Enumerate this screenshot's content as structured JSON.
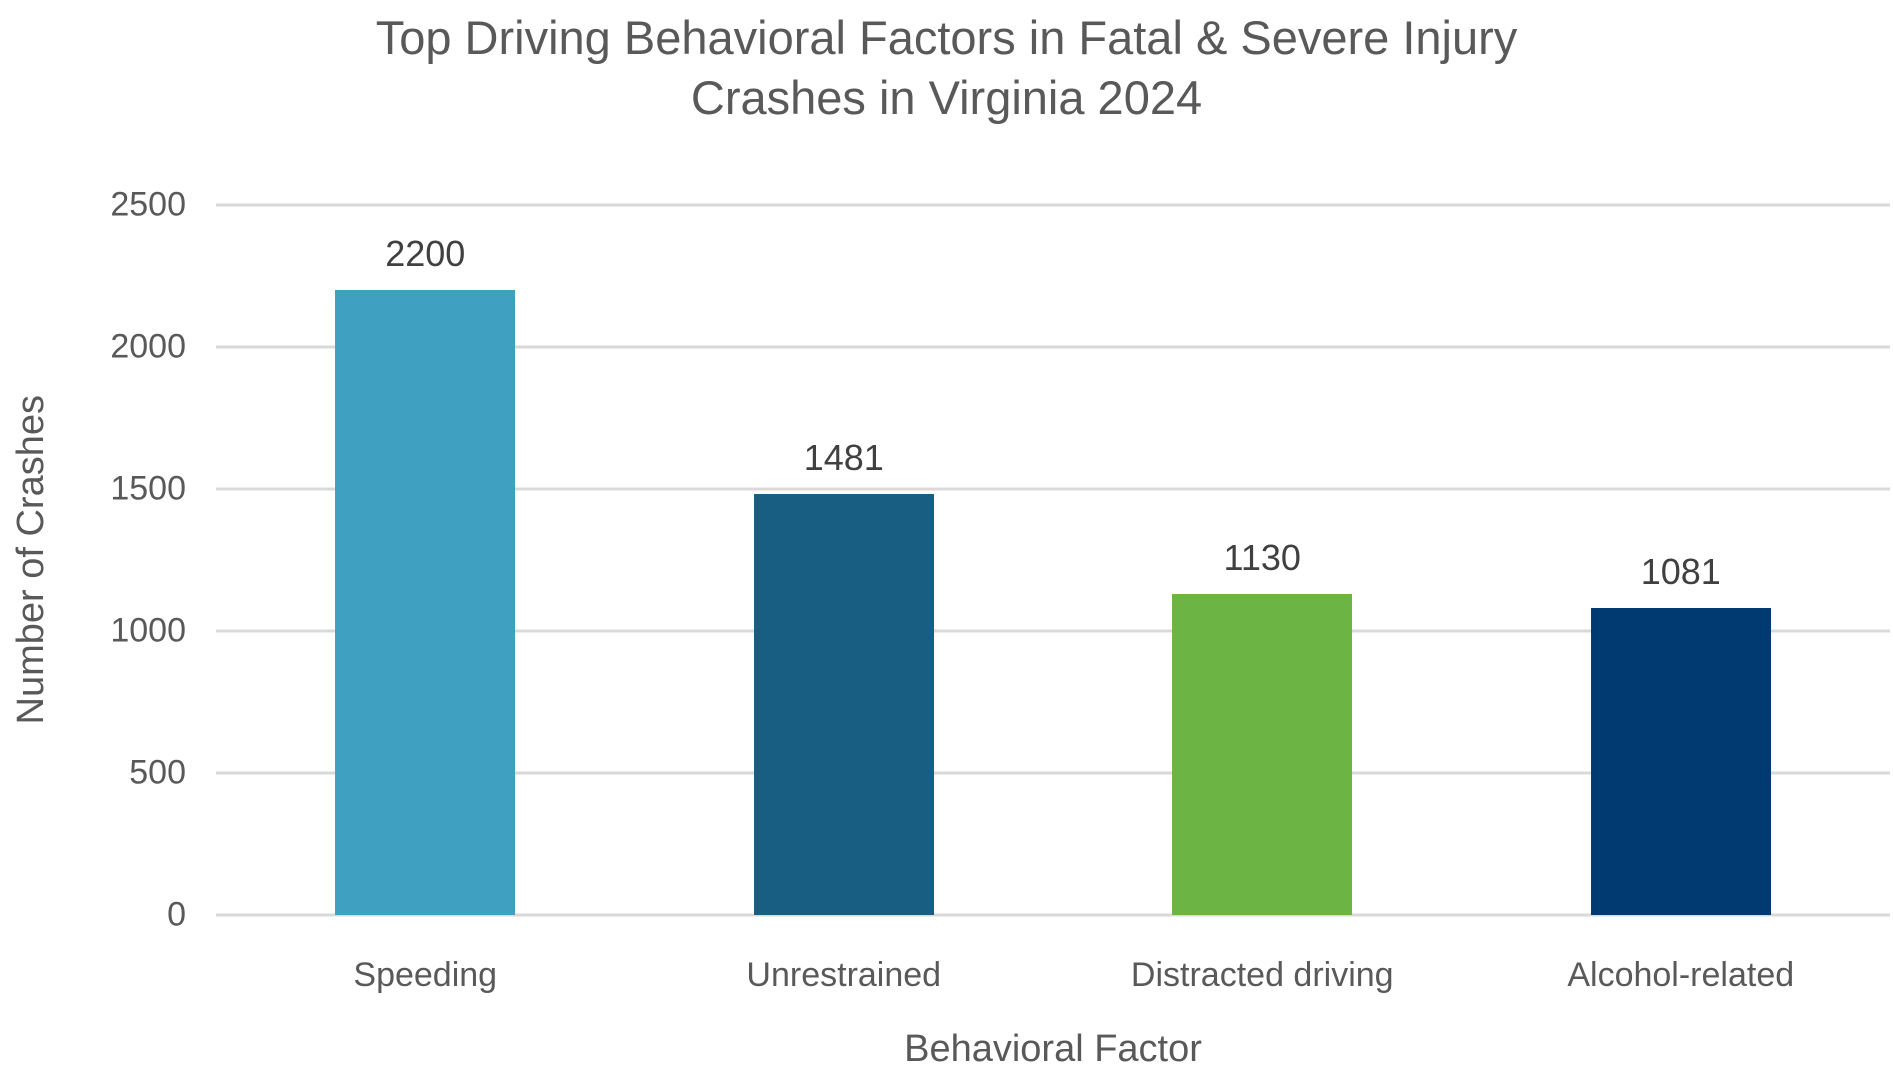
{
  "page": {
    "background": "#FFFFFF",
    "title_lines": [
      "Top Driving Behavioral Factors in Fatal & Severe Injury",
      "Crashes in Virginia 2024"
    ]
  },
  "chart_data": {
    "type": "bar",
    "title": "Top Driving Behavioral Factors in Fatal & Severe Injury Crashes in Virginia 2024",
    "xlabel": "Behavioral Factor",
    "ylabel": "Number of Crashes",
    "categories": [
      "Speeding",
      "Unrestrained",
      "Distracted driving",
      "Alcohol-related"
    ],
    "values": [
      2200,
      1481,
      1130,
      1081
    ],
    "bar_colors": [
      "#3FA0C1",
      "#175E82",
      "#6CB544",
      "#003A70"
    ],
    "ylim": [
      0,
      2500
    ],
    "yticks": [
      0,
      500,
      1000,
      1500,
      2000,
      2500
    ],
    "grid": "horizontal",
    "legend_position": "none",
    "show_data_labels": true
  },
  "style": {
    "title_color": "#595959",
    "axis_title_color": "#595959",
    "tick_label_color": "#595959",
    "data_label_color": "#404040",
    "gridline_color": "#D9D9D9"
  }
}
